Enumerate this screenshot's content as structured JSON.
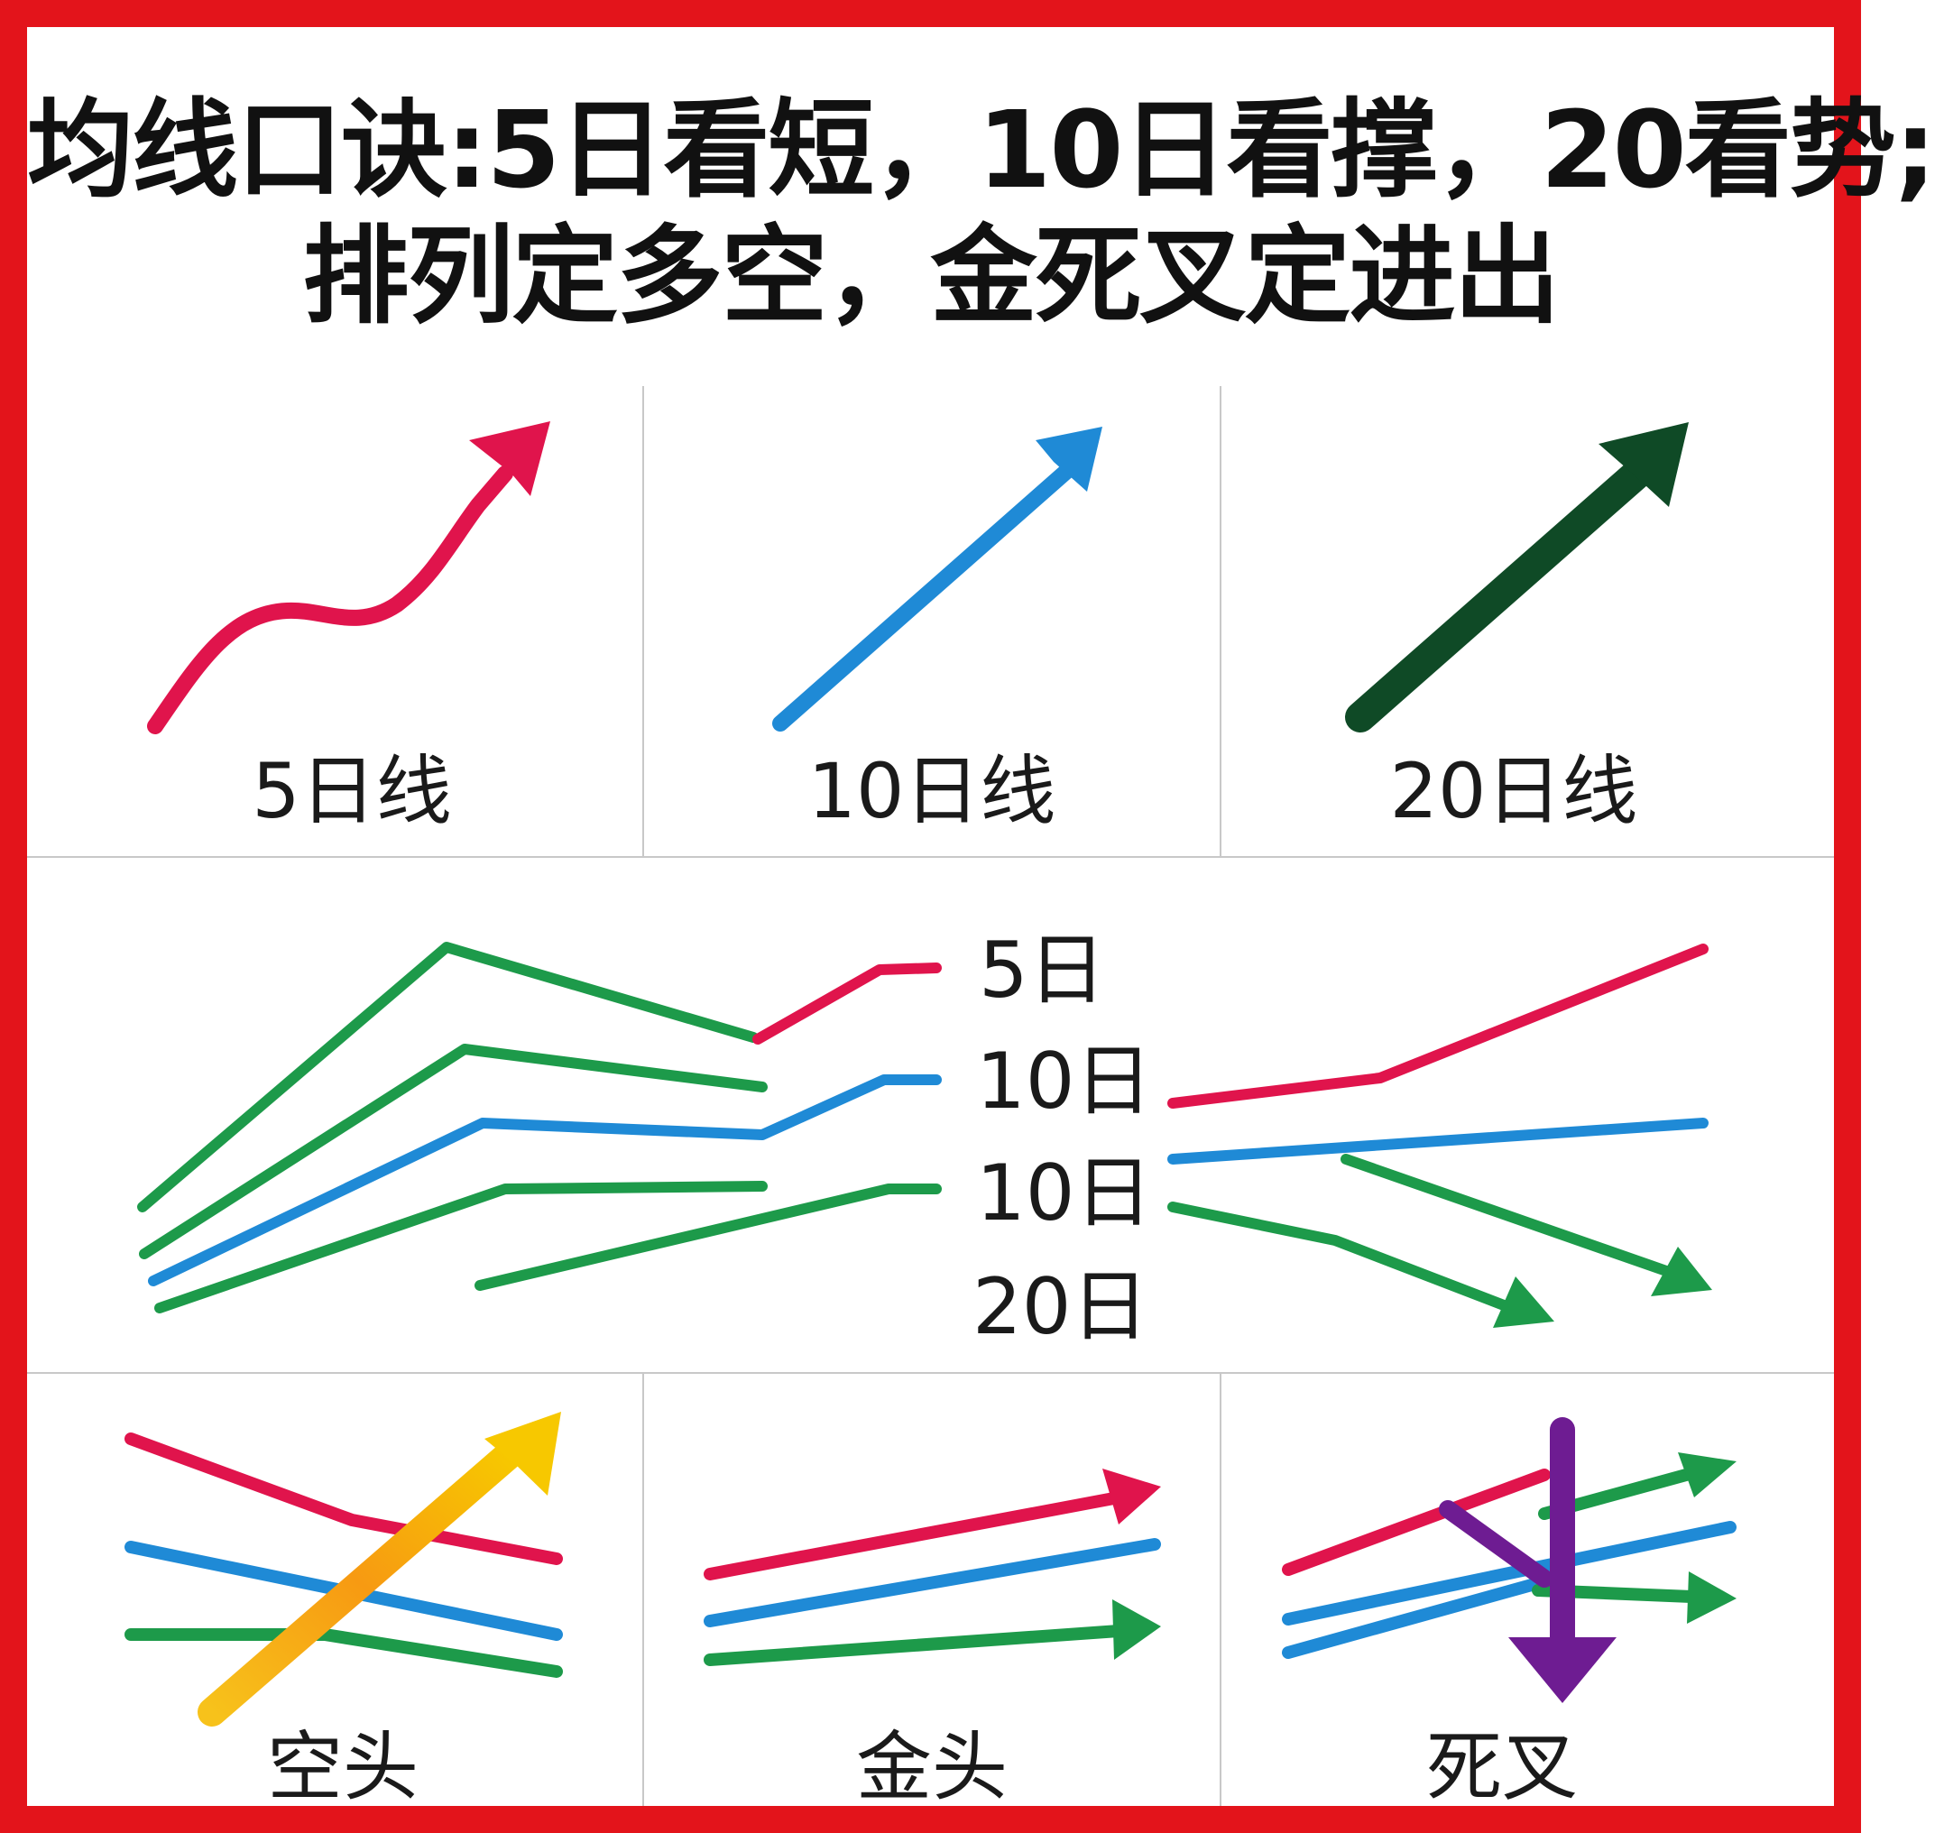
{
  "title": {
    "line1": "均线口诀:5日看短，10日看撑，20看势;",
    "line2": "排列定多空，金死叉定进出"
  },
  "panels": {
    "ma5_label": "5日线",
    "ma10_label": "10日线",
    "ma20_label": "20日线"
  },
  "middle": {
    "labels": [
      "5日",
      "10日",
      "10日",
      "20日"
    ]
  },
  "bottom": {
    "bearish_label": "空头",
    "golden_label": "金头",
    "death_label": "死叉"
  },
  "colors": {
    "frame": "#e3141b",
    "ma5": "#e0144c",
    "ma10": "#1f8ad6",
    "ma20": "#1d9a4a",
    "ma20_dark": "#0f4a26",
    "breakout": "#f7b500",
    "death_cross": "#6e1c92"
  }
}
